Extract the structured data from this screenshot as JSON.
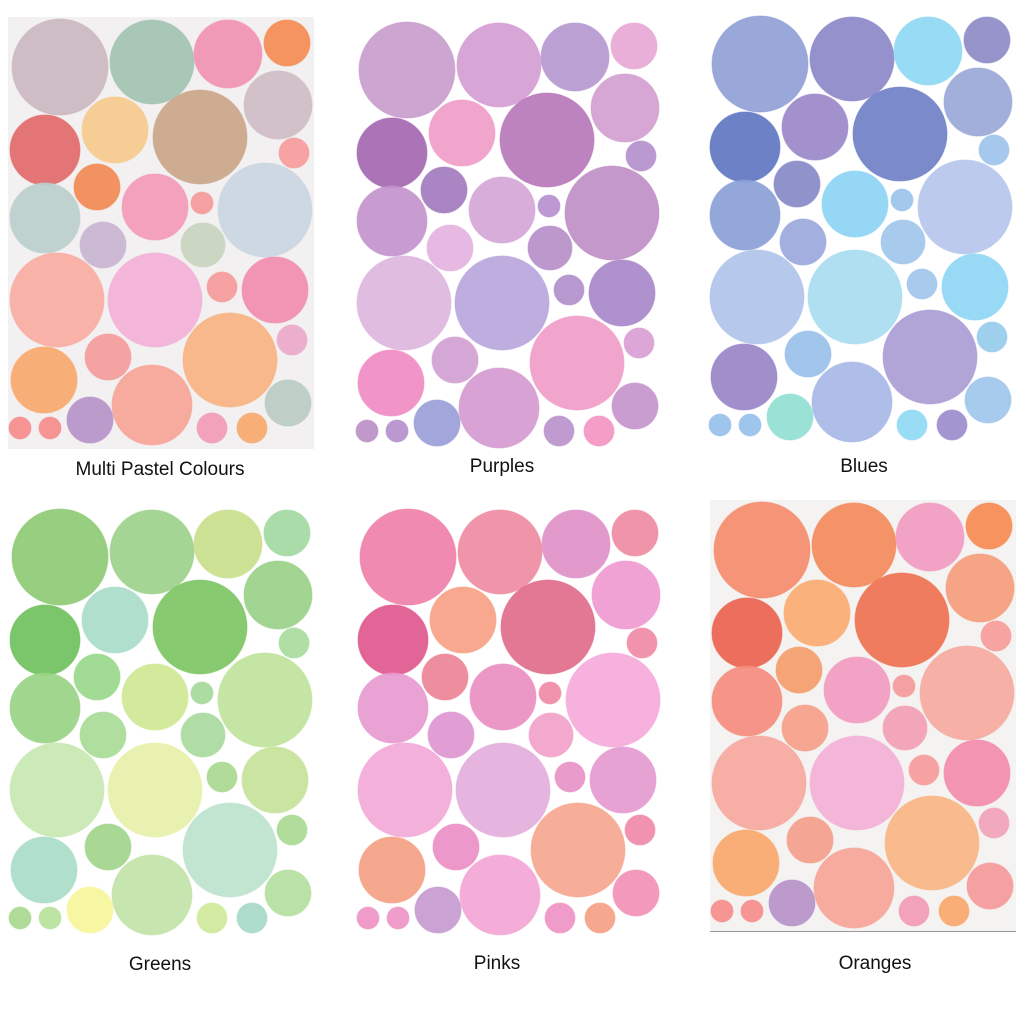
{
  "panels": [
    {
      "label": "Multi Pastel Colours",
      "background": "#f2f0f0",
      "colors": [
        "#cbb8c0",
        "#a3c3b2",
        "#f193b3",
        "#f58c55",
        "#d0bdc6",
        "#e26a6c",
        "#f6ca8c",
        "#caa68a",
        "#f79b9c",
        "#f38a55",
        "#bccfcc",
        "#f39ab7",
        "#f59a9a",
        "#cbd6e1",
        "#c9b5d3",
        "#c8d4bf",
        "#f8aca2",
        "#f3b1d6",
        "#f69b9b",
        "#f28cae",
        "#f59b9b",
        "#f9b382",
        "#eaa9ca",
        "#f8a86d",
        "#f6a597",
        "#bbcbc2",
        "#b692c9",
        "#f68c8c",
        "#f68c8c",
        "#f29bb6",
        "#f8a86d"
      ]
    },
    {
      "label": "Purples",
      "background": "#ffffff",
      "colors": [
        "#c89dcd",
        "#d49dd2",
        "#b598d0",
        "#e7a8d5",
        "#d39fd0",
        "#a468b0",
        "#f09cc8",
        "#b778b9",
        "#b48fcc",
        "#a27cbe",
        "#c394cd",
        "#d5a6d7",
        "#b690cf",
        "#c08fc7",
        "#e3b3de",
        "#b68fc9",
        "#dcb6dd",
        "#b9a6dc",
        "#b190cc",
        "#a788c9",
        "#d19fd2",
        "#f19dc8",
        "#d99fd3",
        "#f08cc3",
        "#d59bd0",
        "#c595cd",
        "#9a9ed8",
        "#bb8fc6",
        "#b58fcb",
        "#bb93cc",
        "#f295c2"
      ]
    },
    {
      "label": "Blues",
      "background": "#ffffff",
      "colors": [
        "#909fd6",
        "#8c88c9",
        "#8fd8f4",
        "#8d8bc7",
        "#9aa8d8",
        "#5f76c1",
        "#9a88c9",
        "#7080c6",
        "#9ec3eb",
        "#8789c7",
        "#8a9fd6",
        "#8cd4f3",
        "#9bc3eb",
        "#b6c6eb",
        "#9aa8dc",
        "#9fc6ec",
        "#b0c3ea",
        "#a8dcef",
        "#9fc6ec",
        "#8fd6f4",
        "#9ac0ea",
        "#aa9cd4",
        "#96cbea",
        "#9985c8",
        "#a7b9e6",
        "#9ec7ec",
        "#93e0d2",
        "#96c0ea",
        "#96c0ea",
        "#8fdaf4",
        "#9b8dcc"
      ]
    },
    {
      "label": "Greens",
      "background": "#ffffff",
      "colors": [
        "#8fca74",
        "#9dd18c",
        "#c9e08c",
        "#a2d9a2",
        "#9ad089",
        "#70c05d",
        "#a9dcc9",
        "#7dc564",
        "#a9db9c",
        "#9ad88a",
        "#99d384",
        "#cfe792",
        "#a6d99a",
        "#bfe39b",
        "#a8db96",
        "#a9da9e",
        "#c8e7b2",
        "#e7f0a9",
        "#a9d88f",
        "#c5e29a",
        "#a2d58b",
        "#bce3cc",
        "#a9da92",
        "#a9dcc8",
        "#c2e3a8",
        "#b5df9e",
        "#f6f59b",
        "#a9d88f",
        "#b9e29c",
        "#cfe89a",
        "#a6d9c8"
      ]
    },
    {
      "label": "Pinks",
      "background": "#ffffff",
      "colors": [
        "#ef80a9",
        "#ef8ca2",
        "#df91c8",
        "#ef8ca2",
        "#ef9ad0",
        "#e0588f",
        "#f6a184",
        "#e06d8b",
        "#f18aa6",
        "#ec8497",
        "#e79ad0",
        "#e98fc1",
        "#f18aa6",
        "#f5aada",
        "#de96d0",
        "#f1a2c9",
        "#f2a9d8",
        "#e3afdc",
        "#e794c8",
        "#e59ad0",
        "#ec8fc7",
        "#f6a78f",
        "#f08aa8",
        "#f4a183",
        "#f3a6d5",
        "#f291b6",
        "#c69ad0",
        "#ef94c5",
        "#ef94c5",
        "#ef94c5",
        "#f4a183"
      ]
    },
    {
      "label": "Oranges",
      "background": "#f4f3f2",
      "colors": [
        "#f48c6d",
        "#f38b5c",
        "#f19bc0",
        "#f58b52",
        "#f49e7d",
        "#e9644f",
        "#fbab72",
        "#ef7252",
        "#f59c9b",
        "#f49d6c",
        "#f58d7e",
        "#f19bc0",
        "#f59a9a",
        "#f6aaa0",
        "#f59f89",
        "#f2a0b5",
        "#f5a89e",
        "#f3b1d6",
        "#f69b9b",
        "#f28cae",
        "#f49e8b",
        "#f9b585",
        "#f2a3b8",
        "#f8a86d",
        "#f6a597",
        "#f59a9a",
        "#b692c9",
        "#f68c8c",
        "#f68c8c",
        "#f29bb6",
        "#f8a86d"
      ]
    }
  ]
}
